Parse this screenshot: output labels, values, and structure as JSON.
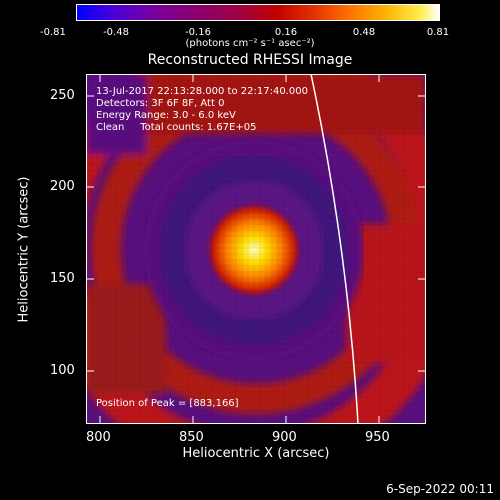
{
  "colorbar": {
    "ticks": [
      "-0.81",
      "-0.48",
      "-0.16",
      "0.16",
      "0.48",
      "0.81"
    ],
    "unit_label": "(photons cm⁻² s⁻¹ asec⁻²)"
  },
  "title": "Reconstructed RHESSI Image",
  "info_lines": [
    "13-Jul-2017 22:13:28.000 to 22:17:40.000",
    "Detectors: 3F 6F 8F, Att 0",
    "Energy Range: 3.0 - 6.0 keV",
    "Clean     Total counts: 1.67E+05"
  ],
  "peak_text": "Position of Peak = [883,166]",
  "x_axis": {
    "label": "Heliocentric X (arcsec)",
    "ticks": [
      "800",
      "850",
      "900",
      "950"
    ]
  },
  "y_axis": {
    "label": "Heliocentric Y (arcsec)",
    "ticks": [
      "250",
      "200",
      "150",
      "100"
    ]
  },
  "date_stamp": "6-Sep-2022 00:11",
  "image": {
    "peak_x": 883,
    "peak_y": 166,
    "xlim": [
      786,
      978
    ],
    "ylim": [
      72,
      262
    ]
  }
}
